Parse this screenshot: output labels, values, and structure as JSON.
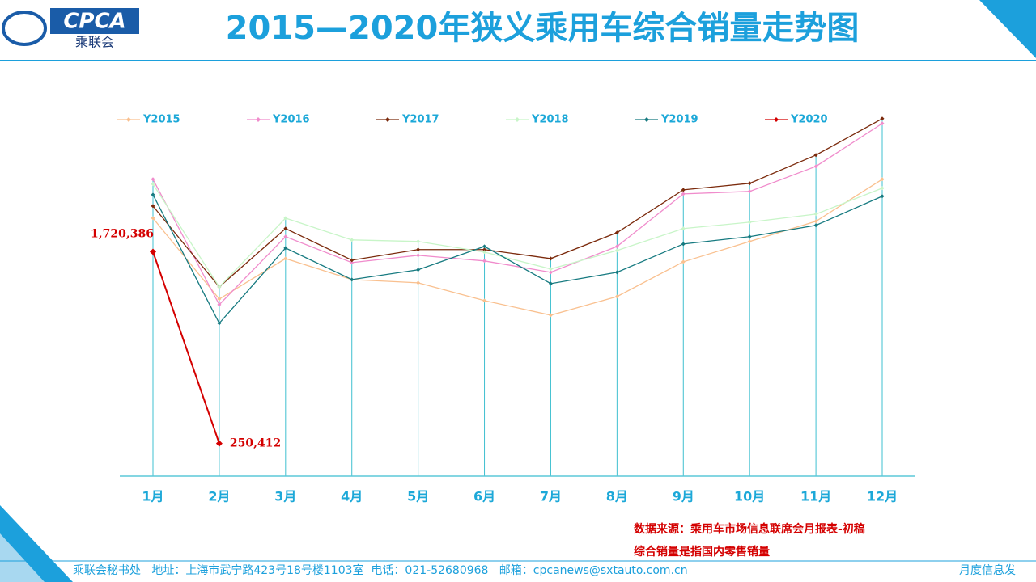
{
  "header": {
    "logo_text": "CPCA",
    "logo_sub": "乘联会",
    "title": "2015—2020年狭义乘用车综合销量走势图"
  },
  "notes": [
    "数据来源：乘用车市场信息联席会月报表-初稿",
    "综合销量是指国内零售销量"
  ],
  "footer": {
    "left": "乘联会秘书处   地址：上海市武宁路423号18号楼1103室  电话：021-52680968   邮箱：cpcanews@sxtauto.com.cn",
    "right": "月度信息发"
  },
  "chart_data": {
    "type": "line",
    "categories": [
      "1月",
      "2月",
      "3月",
      "4月",
      "5月",
      "6月",
      "7月",
      "8月",
      "9月",
      "10月",
      "11月",
      "12月"
    ],
    "ylim": [
      0,
      3000000
    ],
    "legend": "top",
    "series": [
      {
        "name": "Y2015",
        "color": "#f9c08f",
        "values": [
          1978000,
          1358000,
          1668000,
          1507000,
          1482000,
          1346000,
          1234000,
          1377000,
          1643000,
          1799000,
          1954000,
          2276000
        ]
      },
      {
        "name": "Y2016",
        "color": "#f08ccc",
        "values": [
          2276000,
          1315000,
          1836000,
          1637000,
          1693000,
          1650000,
          1563000,
          1761000,
          2164000,
          2183000,
          2375000,
          2704000
        ]
      },
      {
        "name": "Y2017",
        "color": "#7b2a0c",
        "values": [
          2071000,
          1451000,
          1898000,
          1656000,
          1737000,
          1737000,
          1668000,
          1867000,
          2195000,
          2245000,
          2462000,
          2741000
        ]
      },
      {
        "name": "Y2018",
        "color": "#c8f5c8",
        "values": [
          2239000,
          1451000,
          1978000,
          1811000,
          1799000,
          1718000,
          1588000,
          1730000,
          1898000,
          1947000,
          2009000,
          2208000
        ]
      },
      {
        "name": "Y2019",
        "color": "#167a80",
        "values": [
          2158000,
          1172000,
          1749000,
          1507000,
          1582000,
          1761000,
          1476000,
          1563000,
          1780000,
          1836000,
          1923000,
          2146000
        ]
      },
      {
        "name": "Y2020",
        "color": "#d40000",
        "values": [
          1720386,
          250412,
          null,
          null,
          null,
          null,
          null,
          null,
          null,
          null,
          null,
          null
        ],
        "value_labels": [
          "1,720,386",
          "250,412",
          null,
          null,
          null,
          null,
          null,
          null,
          null,
          null,
          null,
          null
        ]
      }
    ]
  }
}
